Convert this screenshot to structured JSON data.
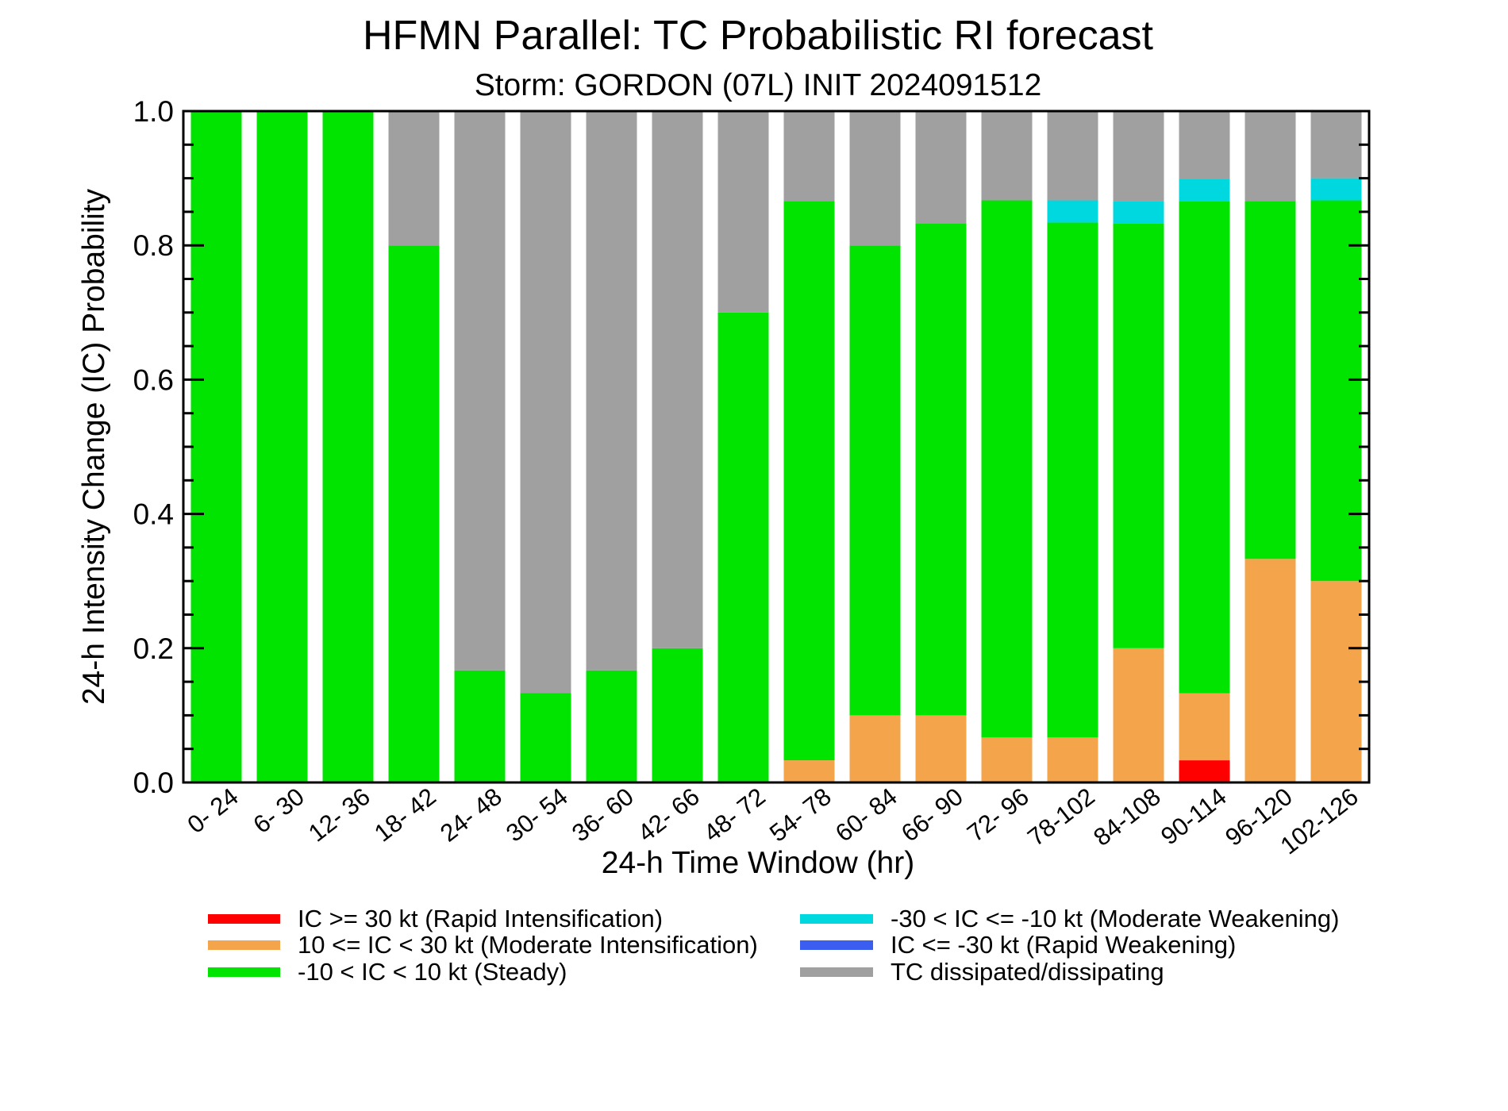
{
  "chart_data": {
    "type": "bar",
    "stacked": true,
    "title": "HFMN Parallel: TC Probabilistic RI forecast",
    "subtitle": "Storm: GORDON (07L) INIT 2024091512",
    "xlabel": "24-h Time Window (hr)",
    "ylabel": "24-h Intensity Change (IC) Probability",
    "ylim": [
      0,
      1
    ],
    "yticks": [
      "0.0",
      "0.2",
      "0.4",
      "0.6",
      "0.8",
      "1.0"
    ],
    "yticks_values": [
      0,
      0.2,
      0.4,
      0.6,
      0.8,
      1.0
    ],
    "categories": [
      "0- 24",
      "6- 30",
      "12- 36",
      "18- 42",
      "24- 48",
      "30- 54",
      "36- 60",
      "42- 66",
      "48- 72",
      "54- 78",
      "60- 84",
      "66- 90",
      "72- 96",
      "78-102",
      "84-108",
      "90-114",
      "96-120",
      "102-126"
    ],
    "series": [
      {
        "name": "IC >= 30 kt (Rapid Intensification)",
        "color": "#ff0000",
        "values": [
          0,
          0,
          0,
          0,
          0,
          0,
          0,
          0,
          0,
          0,
          0,
          0,
          0,
          0,
          0,
          0.033,
          0,
          0
        ]
      },
      {
        "name": "10 <= IC < 30 kt (Moderate Intensification)",
        "color": "#f4a44b",
        "values": [
          0,
          0,
          0,
          0,
          0,
          0,
          0,
          0,
          0,
          0.033,
          0.1,
          0.1,
          0.067,
          0.067,
          0.2,
          0.1,
          0.333,
          0.3
        ]
      },
      {
        "name": "-10 < IC < 10 kt (Steady)",
        "color": "#00e400",
        "values": [
          1.0,
          1.0,
          1.0,
          0.8,
          0.167,
          0.133,
          0.167,
          0.2,
          0.7,
          0.833,
          0.7,
          0.733,
          0.8,
          0.767,
          0.633,
          0.733,
          0.533,
          0.567
        ]
      },
      {
        "name": "-30 < IC <= -10 kt (Moderate Weakening)",
        "color": "#00d8e0",
        "values": [
          0,
          0,
          0,
          0,
          0,
          0,
          0,
          0,
          0,
          0,
          0,
          0,
          0,
          0.033,
          0.033,
          0.033,
          0,
          0.033
        ]
      },
      {
        "name": "IC <= -30 kt (Rapid Weakening)",
        "color": "#3c5ef0",
        "values": [
          0,
          0,
          0,
          0,
          0,
          0,
          0,
          0,
          0,
          0,
          0,
          0,
          0,
          0,
          0,
          0,
          0,
          0
        ]
      },
      {
        "name": "TC dissipated/dissipating",
        "color": "#a0a0a0",
        "values": [
          0,
          0,
          0,
          0.2,
          0.833,
          0.867,
          0.833,
          0.8,
          0.3,
          0.133,
          0.2,
          0.167,
          0.133,
          0.133,
          0.133,
          0.1,
          0.133,
          0.1
        ]
      }
    ],
    "legend": {
      "placement": "bottom",
      "left": [
        "IC >= 30 kt (Rapid Intensification)",
        "10 <= IC < 30 kt (Moderate Intensification)",
        "-10 < IC < 10 kt (Steady)"
      ],
      "right": [
        "-30 < IC <= -10 kt (Moderate Weakening)",
        "IC <= -30 kt (Rapid Weakening)",
        "TC dissipated/dissipating"
      ]
    }
  }
}
